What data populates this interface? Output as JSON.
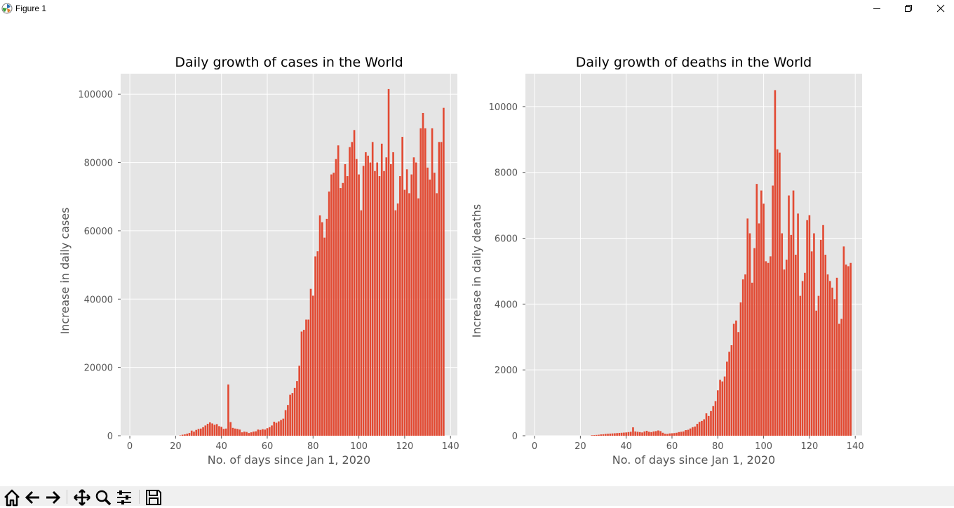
{
  "window": {
    "title": "Figure 1",
    "app_icon": "matplotlib-icon",
    "controls": [
      "minimize-icon",
      "restore-icon",
      "close-icon"
    ]
  },
  "toolbar": {
    "buttons": [
      {
        "name": "home",
        "icon": "home-icon"
      },
      {
        "name": "back",
        "icon": "back-arrow-icon"
      },
      {
        "name": "forward",
        "icon": "forward-arrow-icon"
      },
      {
        "name": "pan",
        "icon": "pan-move-icon"
      },
      {
        "name": "zoom",
        "icon": "zoom-magnifier-icon"
      },
      {
        "name": "configure-subplots",
        "icon": "sliders-icon"
      },
      {
        "name": "save",
        "icon": "save-floppy-icon"
      }
    ]
  },
  "style": {
    "bar_color": "#E24A33",
    "axes_bg": "#E5E5E5",
    "grid_color": "#FFFFFF",
    "text_color": "#555555"
  },
  "chart_data": [
    {
      "type": "bar",
      "title": "Daily growth of cases in the World",
      "xlabel": "No. of days since Jan 1, 2020",
      "ylabel": "Increase in daily cases",
      "xlim": [
        -4,
        143
      ],
      "ylim": [
        0,
        106000
      ],
      "xticks": [
        0,
        20,
        40,
        60,
        80,
        100,
        120,
        140
      ],
      "yticks": [
        0,
        20000,
        40000,
        60000,
        80000,
        100000
      ],
      "grid": true,
      "x_start": 0,
      "values": [
        0,
        0,
        0,
        0,
        0,
        0,
        0,
        0,
        0,
        0,
        0,
        0,
        0,
        0,
        0,
        0,
        0,
        0,
        0,
        0,
        0,
        0,
        100,
        300,
        400,
        600,
        800,
        1500,
        1200,
        1700,
        2000,
        2100,
        2500,
        3000,
        3500,
        3900,
        3600,
        3200,
        3400,
        2800,
        2600,
        2000,
        2100,
        15000,
        4000,
        2300,
        2100,
        2000,
        1800,
        1000,
        1200,
        1100,
        800,
        1000,
        1200,
        1300,
        1800,
        1700,
        1900,
        1800,
        2200,
        2500,
        3000,
        4100,
        3800,
        4200,
        4600,
        5000,
        7500,
        9000,
        12000,
        12500,
        14000,
        16000,
        20500,
        30500,
        31000,
        34000,
        34000,
        43000,
        41000,
        52500,
        54000,
        64500,
        62500,
        58000,
        63500,
        71500,
        76500,
        77000,
        81000,
        85000,
        72500,
        74000,
        79500,
        76000,
        84500,
        86000,
        89500,
        81000,
        76500,
        66000,
        79000,
        83000,
        82000,
        80000,
        86000,
        77500,
        80000,
        76000,
        85500,
        77500,
        81500,
        101500,
        79500,
        83000,
        66000,
        68000,
        76000,
        87500,
        72000,
        78000,
        71000,
        76500,
        81500,
        80000,
        69500,
        90000,
        94500,
        90000,
        78500,
        75000,
        90000,
        77000,
        71000,
        86000,
        86000,
        96000
      ]
    },
    {
      "type": "bar",
      "title": "Daily growth of deaths in the World",
      "xlabel": "No. of days since Jan 1, 2020",
      "ylabel": "Increase in daily deaths",
      "xlim": [
        -4,
        143
      ],
      "ylim": [
        0,
        11000
      ],
      "xticks": [
        0,
        20,
        40,
        60,
        80,
        100,
        120,
        140
      ],
      "yticks": [
        0,
        2000,
        4000,
        6000,
        8000,
        10000
      ],
      "grid": true,
      "x_start": 0,
      "values": [
        0,
        0,
        0,
        0,
        0,
        0,
        0,
        0,
        0,
        0,
        0,
        0,
        0,
        0,
        0,
        0,
        0,
        0,
        0,
        0,
        0,
        0,
        0,
        0,
        0,
        15,
        20,
        25,
        30,
        40,
        45,
        55,
        60,
        65,
        70,
        75,
        80,
        85,
        90,
        95,
        100,
        110,
        120,
        255,
        130,
        120,
        110,
        100,
        130,
        150,
        120,
        110,
        130,
        140,
        160,
        140,
        90,
        60,
        55,
        70,
        75,
        80,
        90,
        110,
        120,
        130,
        170,
        180,
        220,
        260,
        280,
        360,
        420,
        450,
        500,
        680,
        600,
        750,
        900,
        1050,
        1380,
        1700,
        1650,
        1800,
        2250,
        2550,
        2750,
        3400,
        3500,
        3150,
        4050,
        4750,
        4900,
        6600,
        6150,
        4650,
        5700,
        7650,
        6450,
        7450,
        7050,
        5300,
        5250,
        5450,
        7600,
        10500,
        8700,
        8600,
        6150,
        5050,
        5350,
        7300,
        6100,
        7450,
        5500,
        6750,
        4250,
        4700,
        4950,
        6550,
        6700,
        5600,
        6150,
        3800,
        4250,
        5950,
        6400,
        5500,
        4900,
        4700,
        4500,
        4150,
        4800,
        3400,
        3550,
        5750,
        5200,
        5150,
        5250
      ]
    }
  ]
}
